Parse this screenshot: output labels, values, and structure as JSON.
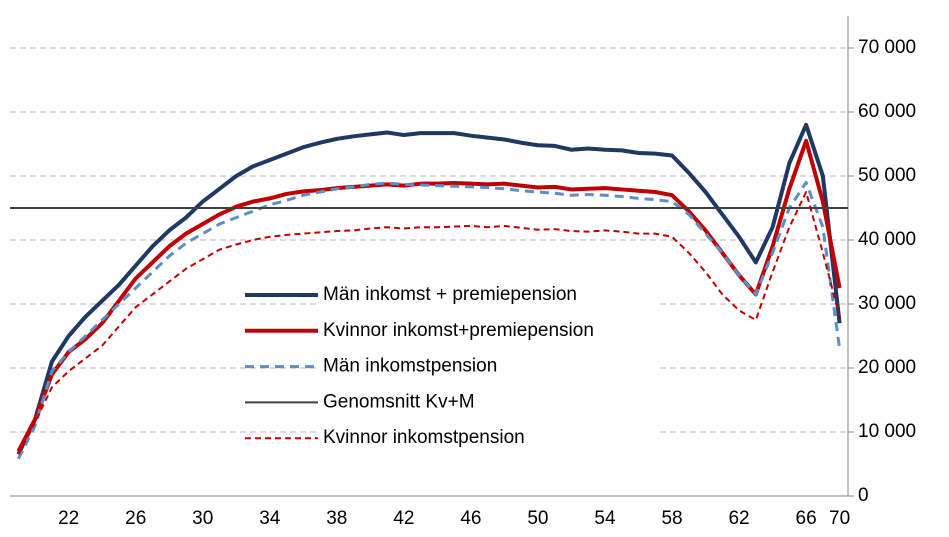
{
  "chart_data": {
    "type": "line",
    "categories": [
      null,
      null,
      null,
      "22",
      null,
      null,
      null,
      "26",
      null,
      null,
      null,
      "30",
      null,
      null,
      null,
      "34",
      null,
      null,
      null,
      "38",
      null,
      null,
      null,
      "42",
      null,
      null,
      null,
      "46",
      null,
      null,
      null,
      "50",
      null,
      null,
      null,
      "54",
      null,
      null,
      null,
      "58",
      null,
      null,
      null,
      "62",
      null,
      null,
      null,
      "66",
      null,
      "70"
    ],
    "ylim": [
      0,
      75000
    ],
    "yticks": [
      0,
      {
        "value": 10000,
        "label": "10 000"
      },
      {
        "value": 20000,
        "label": "20 000"
      },
      {
        "value": 30000,
        "label": "30 000"
      },
      {
        "value": 40000,
        "label": "40 000"
      },
      {
        "value": 50000,
        "label": "50 000"
      },
      {
        "value": 60000,
        "label": "60 000"
      },
      {
        "value": 70000,
        "label": "70 000"
      }
    ],
    "grid": true,
    "series": [
      {
        "name": "Män inkomst + premiepension",
        "color": "#1f3864",
        "width": 4,
        "dashed": false,
        "values": [
          6500,
          12000,
          21000,
          25000,
          28000,
          30500,
          33000,
          36000,
          39000,
          41500,
          43500,
          46000,
          48000,
          50000,
          51500,
          52500,
          53500,
          54500,
          55200,
          55800,
          56200,
          56500,
          56800,
          56400,
          56700,
          56700,
          56700,
          56300,
          56000,
          55700,
          55200,
          54800,
          54700,
          54100,
          54300,
          54100,
          54000,
          53600,
          53500,
          53200,
          50500,
          47500,
          44000,
          40500,
          36500,
          42000,
          52000,
          58000,
          50000,
          27000
        ]
      },
      {
        "name": "Kvinnor inkomst+premiepension",
        "color": "#c00000",
        "width": 4,
        "dashed": false,
        "values": [
          7000,
          12000,
          19000,
          22500,
          24500,
          27000,
          30500,
          34000,
          36500,
          39000,
          41000,
          42500,
          44000,
          45200,
          46000,
          46500,
          47200,
          47600,
          47800,
          48100,
          48300,
          48500,
          48700,
          48500,
          48800,
          48800,
          48900,
          48800,
          48700,
          48800,
          48500,
          48200,
          48300,
          47900,
          48000,
          48100,
          47900,
          47700,
          47500,
          47000,
          44500,
          41500,
          38000,
          34500,
          31500,
          39000,
          48000,
          55500,
          46000,
          32500
        ]
      },
      {
        "name": "Män inkomstpension",
        "color": "#5b8fc9",
        "width": 3,
        "dashed": true,
        "values": [
          5800,
          11000,
          19500,
          22500,
          25000,
          27500,
          30000,
          32500,
          35000,
          37500,
          39500,
          41000,
          42500,
          43500,
          44500,
          45500,
          46200,
          47000,
          47500,
          48000,
          48300,
          48700,
          48900,
          48700,
          48600,
          48500,
          48400,
          48300,
          48200,
          48000,
          47700,
          47500,
          47300,
          47000,
          47100,
          47000,
          46800,
          46500,
          46300,
          46000,
          44000,
          41000,
          38000,
          34500,
          31500,
          38000,
          45000,
          49000,
          42000,
          23000
        ]
      },
      {
        "name": "Genomsnitt Kv+M",
        "color": "#404040",
        "width": 2,
        "dashed": false,
        "value": 45000
      },
      {
        "name": "Kvinnor inkomstpension",
        "color": "#c00000",
        "width": 2,
        "dashed": true,
        "values": [
          6500,
          11500,
          17000,
          19500,
          21500,
          23500,
          26500,
          29500,
          31500,
          33500,
          35500,
          37000,
          38500,
          39300,
          40000,
          40500,
          40800,
          41000,
          41200,
          41400,
          41500,
          41800,
          42000,
          41800,
          42000,
          42000,
          42100,
          42200,
          42000,
          42200,
          41900,
          41600,
          41700,
          41400,
          41300,
          41500,
          41300,
          41000,
          41000,
          40500,
          38000,
          35000,
          31500,
          29000,
          27500,
          35000,
          42000,
          47500,
          38000,
          28000
        ]
      }
    ]
  }
}
